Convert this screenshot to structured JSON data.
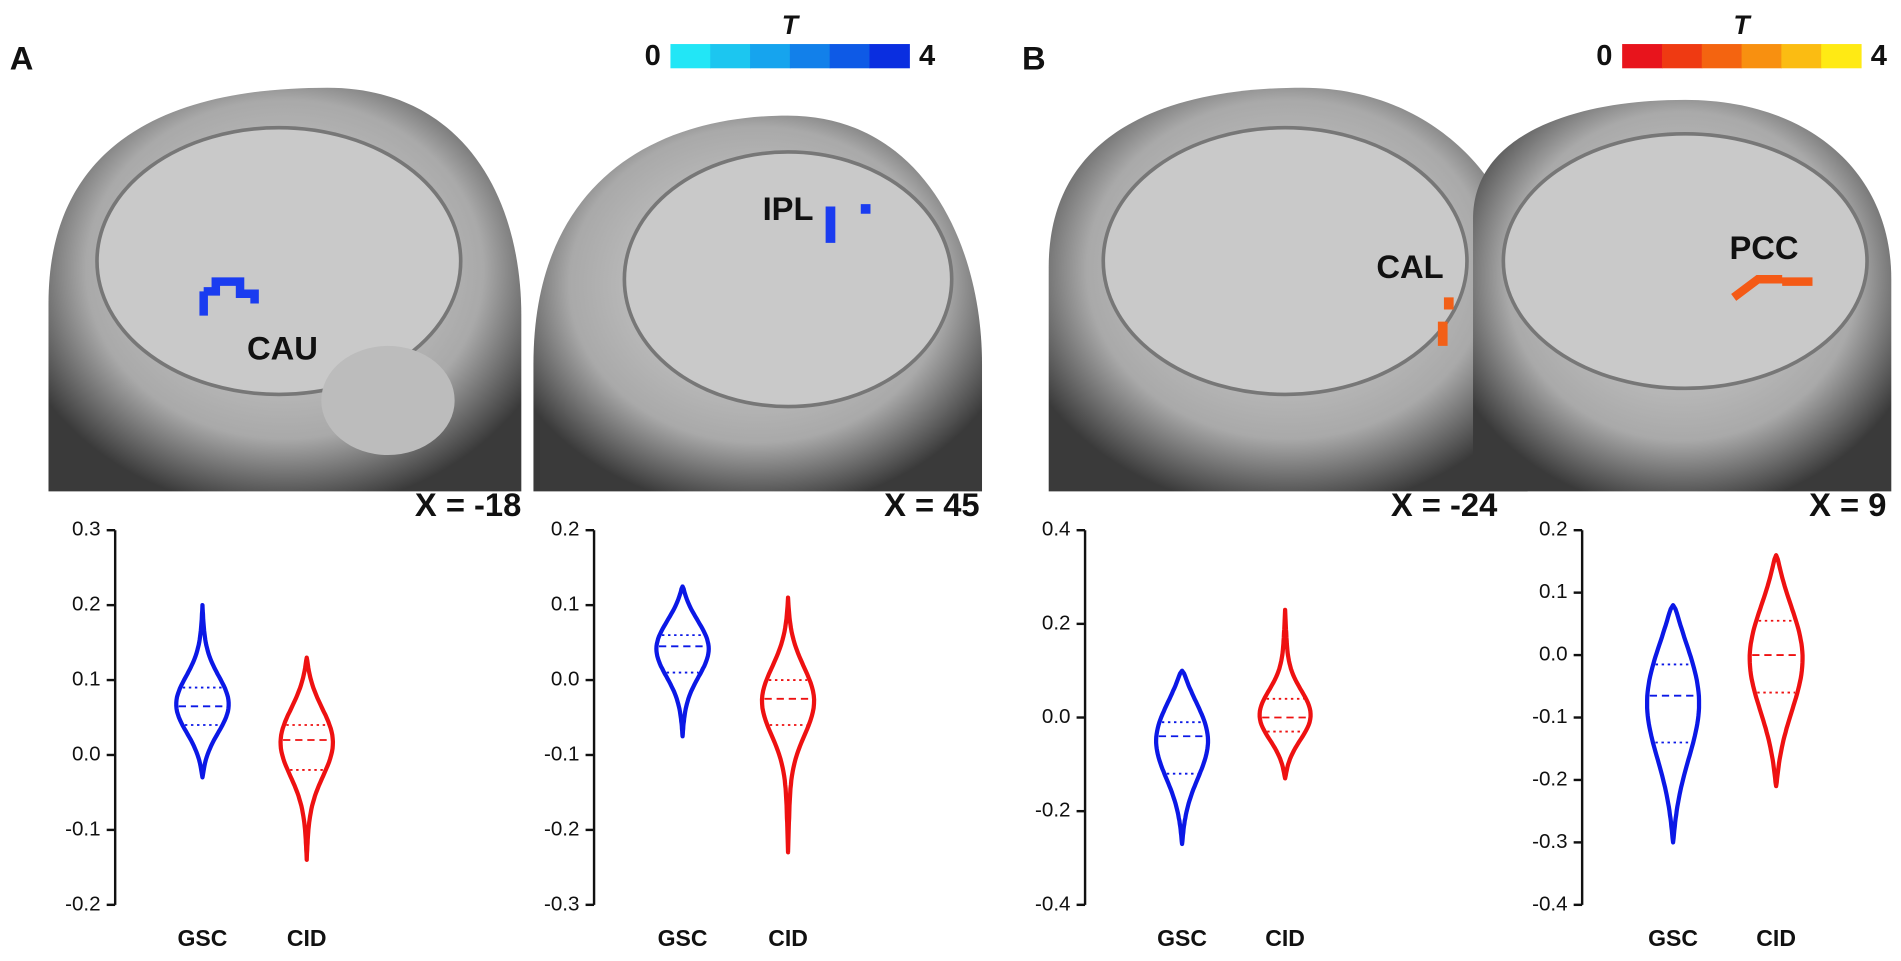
{
  "panels": [
    {
      "label": "A",
      "colorbar": {
        "title": "T",
        "ticks": [
          0,
          4
        ],
        "colors": [
          "#22e6f6",
          "#1cc6f0",
          "#16a4ee",
          "#1280ea",
          "#0e5ae6",
          "#0a2ee0"
        ]
      },
      "slices": [
        {
          "label": "X = -18",
          "region": "CAU"
        },
        {
          "label": "X = 45",
          "region": "IPL"
        }
      ]
    },
    {
      "label": "B",
      "colorbar": {
        "title": "T",
        "ticks": [
          0,
          4
        ],
        "colors": [
          "#e8141c",
          "#ef3a12",
          "#f46410",
          "#f89010",
          "#fbbc12",
          "#ffea14"
        ]
      },
      "slices": [
        {
          "label": "X = -24",
          "region": "CAL"
        },
        {
          "label": "X = 9",
          "region": "PCC"
        }
      ]
    }
  ],
  "chart_data": [
    {
      "type": "violin",
      "categories": [
        "GSC",
        "CID"
      ],
      "colors": [
        "#0b18e6",
        "#ee1111"
      ],
      "ylim": [
        -0.2,
        0.3
      ],
      "yticks": [
        -0.2,
        -0.1,
        {
          "value": 0,
          "label": "0.0"
        },
        0.1,
        0.2,
        0.3
      ],
      "groups": [
        {
          "min": -0.03,
          "q1": 0.04,
          "median": 0.065,
          "q3": 0.09,
          "max": 0.2
        },
        {
          "min": -0.14,
          "q1": -0.02,
          "median": 0.02,
          "q3": 0.04,
          "max": 0.13
        }
      ]
    },
    {
      "type": "violin",
      "categories": [
        "GSC",
        "CID"
      ],
      "colors": [
        "#0b18e6",
        "#ee1111"
      ],
      "ylim": [
        -0.3,
        0.2
      ],
      "yticks": [
        -0.3,
        -0.2,
        -0.1,
        {
          "value": 0,
          "label": "0.0"
        },
        0.1,
        0.2
      ],
      "groups": [
        {
          "min": -0.075,
          "q1": 0.01,
          "median": 0.045,
          "q3": 0.06,
          "max": 0.125
        },
        {
          "min": -0.23,
          "q1": -0.06,
          "median": -0.025,
          "q3": 0.0,
          "max": 0.11
        }
      ]
    },
    {
      "type": "violin",
      "categories": [
        "GSC",
        "CID"
      ],
      "colors": [
        "#0b18e6",
        "#ee1111"
      ],
      "ylim": [
        -0.4,
        0.4
      ],
      "yticks": [
        -0.4,
        -0.2,
        {
          "value": 0,
          "label": "0.0"
        },
        0.2,
        0.4
      ],
      "groups": [
        {
          "min": -0.27,
          "q1": -0.12,
          "median": -0.04,
          "q3": -0.01,
          "max": 0.1
        },
        {
          "min": -0.13,
          "q1": -0.03,
          "median": 0.0,
          "q3": 0.04,
          "max": 0.23
        }
      ]
    },
    {
      "type": "violin",
      "categories": [
        "GSC",
        "CID"
      ],
      "colors": [
        "#0b18e6",
        "#ee1111"
      ],
      "ylim": [
        -0.4,
        0.2
      ],
      "yticks": [
        -0.4,
        -0.3,
        -0.2,
        -0.1,
        {
          "value": 0,
          "label": "0.0"
        },
        0.1,
        0.2
      ],
      "groups": [
        {
          "min": -0.3,
          "q1": -0.14,
          "median": -0.065,
          "q3": -0.015,
          "max": 0.08
        },
        {
          "min": -0.21,
          "q1": -0.06,
          "median": 0.0,
          "q3": 0.055,
          "max": 0.16
        }
      ]
    }
  ]
}
